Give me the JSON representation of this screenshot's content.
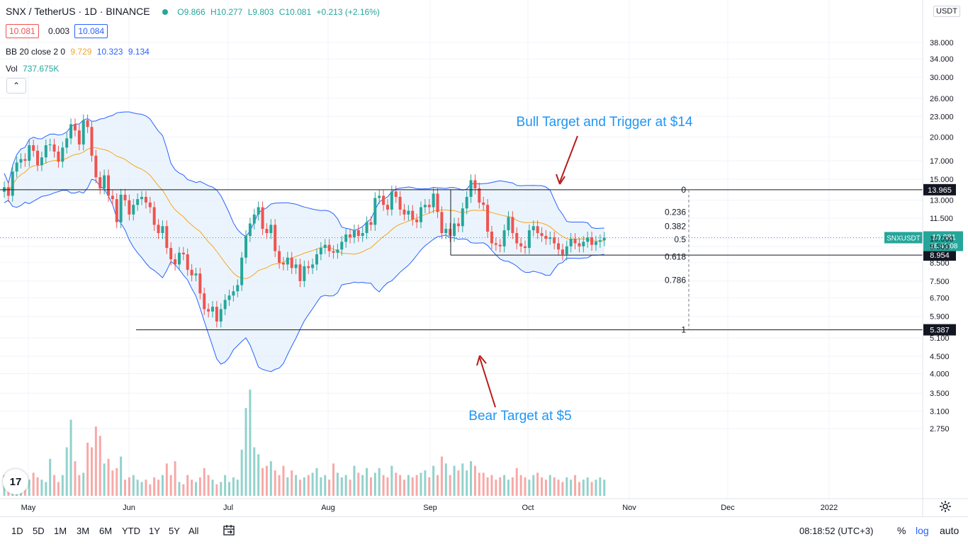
{
  "header": {
    "symbol": "SNX / TetherUS · 1D · BINANCE",
    "o": "O9.866",
    "h": "H10.277",
    "l": "L9.803",
    "c": "C10.081",
    "change": "+0.213 (+2.16%)",
    "bid": "10.081",
    "spread": "0.003",
    "ask": "10.084"
  },
  "indicators": {
    "bb_label": "BB 20 close 2 0",
    "bb_basis": "9.729",
    "bb_upper": "10.323",
    "bb_lower": "9.134",
    "vol_label": "Vol",
    "vol_value": "737.675K"
  },
  "axis": {
    "currency": "USDT",
    "symbol_tag": "SNXUSDT",
    "last_price": "10.081",
    "countdown": "18:41:08"
  },
  "bottom": {
    "ranges": [
      "1D",
      "5D",
      "1M",
      "3M",
      "6M",
      "YTD",
      "1Y",
      "5Y",
      "All"
    ],
    "clock": "08:18:52 (UTC+3)",
    "pct": "%",
    "log": "log",
    "auto": "auto"
  },
  "colors": {
    "up": "#26a69a",
    "down": "#ef5350",
    "band": "#2962ff",
    "band_fill": "#e3f0fb",
    "basis": "#f5a623",
    "annotation": "#2196f3",
    "arrow": "#b71c1c"
  },
  "icons": [
    "collapse-chevron-icon",
    "tradingview-logo-icon",
    "goto-date-icon",
    "gear-icon"
  ],
  "chart_data": {
    "type": "candlestick",
    "scale": "log",
    "title": "SNX / TetherUS · 1D · BINANCE",
    "y_ticks": [
      38,
      34,
      30,
      26,
      23,
      20,
      17,
      15,
      13,
      11.5,
      10,
      9.5,
      8.5,
      7.5,
      6.7,
      5.9,
      5.1,
      4.5,
      4,
      3.5,
      3.1,
      2.75
    ],
    "y_tick_labels": [
      "38.000",
      "34.000",
      "30.000",
      "26.000",
      "23.000",
      "20.000",
      "17.000",
      "15.000",
      "13.000",
      "11.500",
      "10.000",
      "9.500",
      "8.500",
      "7.500",
      "6.700",
      "5.900",
      "5.100",
      "4.500",
      "4.000",
      "3.500",
      "3.100",
      "2.750"
    ],
    "x_labels": [
      "May",
      "Jun",
      "Jul",
      "Aug",
      "Sep",
      "Oct",
      "Nov",
      "Dec",
      "2022"
    ],
    "horizontal_levels": [
      {
        "price": 13.965,
        "label": "13.965"
      },
      {
        "price": 8.954,
        "label": "8.954"
      },
      {
        "price": 5.387,
        "label": "5.387"
      }
    ],
    "fib_levels": [
      {
        "ratio": "0",
        "price": 13.965
      },
      {
        "ratio": "0.236",
        "price": 12.0
      },
      {
        "ratio": "0.382",
        "price": 10.9
      },
      {
        "ratio": "0.5",
        "price": 9.95
      },
      {
        "ratio": "0.618",
        "price": 8.85
      },
      {
        "ratio": "0.786",
        "price": 7.55
      },
      {
        "ratio": "1",
        "price": 5.387
      }
    ],
    "annotations": [
      {
        "text": "Bull Target and Trigger at $14"
      },
      {
        "text": "Bear Target at $5"
      }
    ],
    "series_summary": {
      "start": "2021-05-01",
      "end": "2021-10-27",
      "high": 25.9,
      "low": 5.6,
      "last": 10.081
    },
    "closes": [
      14.2,
      13.4,
      15.8,
      16.8,
      17.2,
      17.0,
      18.9,
      18.2,
      16.5,
      17.4,
      18.9,
      19.0,
      18.1,
      16.9,
      18.6,
      19.8,
      21.8,
      20.9,
      19.0,
      22.4,
      21.4,
      17.6,
      15.2,
      14.1,
      15.4,
      13.4,
      13.1,
      11.2,
      13.5,
      13.0,
      11.8,
      12.6,
      13.1,
      13.3,
      12.8,
      12.4,
      11.0,
      10.4,
      10.9,
      9.4,
      8.7,
      8.4,
      9.1,
      9.0,
      8.1,
      7.8,
      7.9,
      6.9,
      6.2,
      6.1,
      6.3,
      5.7,
      6.2,
      6.6,
      6.8,
      7.0,
      7.3,
      8.8,
      10.2,
      11.1,
      11.8,
      12.4,
      10.7,
      10.4,
      11.0,
      9.2,
      8.5,
      8.4,
      8.8,
      8.2,
      8.4,
      7.5,
      8.3,
      8.2,
      8.4,
      9.0,
      9.4,
      9.6,
      9.2,
      9.1,
      9.3,
      9.8,
      10.3,
      10.1,
      10.6,
      10.2,
      10.4,
      11.2,
      11.0,
      13.2,
      13.4,
      12.6,
      12.2,
      13.8,
      13.3,
      12.2,
      11.8,
      12.1,
      11.4,
      11.2,
      12.4,
      12.6,
      12.4,
      13.6,
      12.0,
      10.4,
      10.7,
      10.2,
      11.1,
      10.9,
      12.3,
      13.3,
      14.9,
      14.1,
      12.8,
      12.6,
      10.5,
      9.7,
      9.6,
      9.5,
      10.6,
      11.6,
      10.4,
      9.7,
      9.5,
      9.4,
      10.6,
      10.9,
      10.4,
      10.2,
      10.0,
      10.1,
      9.7,
      9.3,
      9.0,
      9.5,
      10.0,
      9.7,
      9.5,
      9.8,
      10.1,
      9.6,
      9.8,
      9.9,
      10.081
    ],
    "volumes": [
      0.9,
      0.8,
      0.9,
      0.7,
      0.8,
      0.6,
      0.7,
      1.0,
      0.8,
      0.7,
      0.6,
      1.6,
      0.9,
      0.6,
      0.9,
      2.1,
      3.3,
      1.5,
      0.9,
      1.0,
      2.3,
      2.1,
      3.0,
      2.6,
      1.4,
      1.6,
      1.1,
      1.2,
      1.7,
      0.7,
      0.8,
      0.9,
      0.7,
      0.6,
      0.7,
      0.5,
      0.8,
      0.7,
      0.9,
      1.4,
      0.9,
      1.5,
      0.6,
      0.5,
      0.9,
      0.7,
      0.6,
      0.8,
      1.2,
      0.9,
      0.7,
      0.5,
      0.6,
      0.9,
      0.6,
      0.8,
      0.7,
      2.0,
      3.8,
      4.6,
      2.1,
      1.8,
      1.2,
      1.3,
      1.5,
      1.1,
      0.9,
      1.3,
      0.8,
      1.1,
      0.9,
      0.7,
      0.8,
      0.9,
      1.0,
      1.2,
      0.8,
      0.9,
      0.7,
      1.4,
      1.0,
      0.8,
      0.9,
      0.7,
      1.3,
      1.0,
      0.9,
      1.2,
      0.8,
      1.0,
      1.2,
      0.9,
      0.8,
      1.3,
      1.0,
      0.9,
      0.7,
      0.9,
      0.8,
      0.9,
      1.0,
      1.1,
      0.8,
      1.3,
      0.9,
      1.7,
      1.4,
      0.9,
      1.3,
      1.1,
      1.4,
      1.1,
      1.5,
      1.3,
      1.0,
      1.0,
      0.8,
      0.9,
      0.7,
      0.8,
      0.9,
      0.7,
      0.8,
      1.2,
      0.9,
      0.8,
      0.7,
      0.9,
      1.0,
      0.8,
      0.7,
      0.9,
      0.8,
      0.7,
      0.6,
      0.8,
      0.7,
      0.9,
      0.6,
      0.7,
      0.8,
      0.6,
      0.7,
      0.8,
      0.7
    ]
  }
}
